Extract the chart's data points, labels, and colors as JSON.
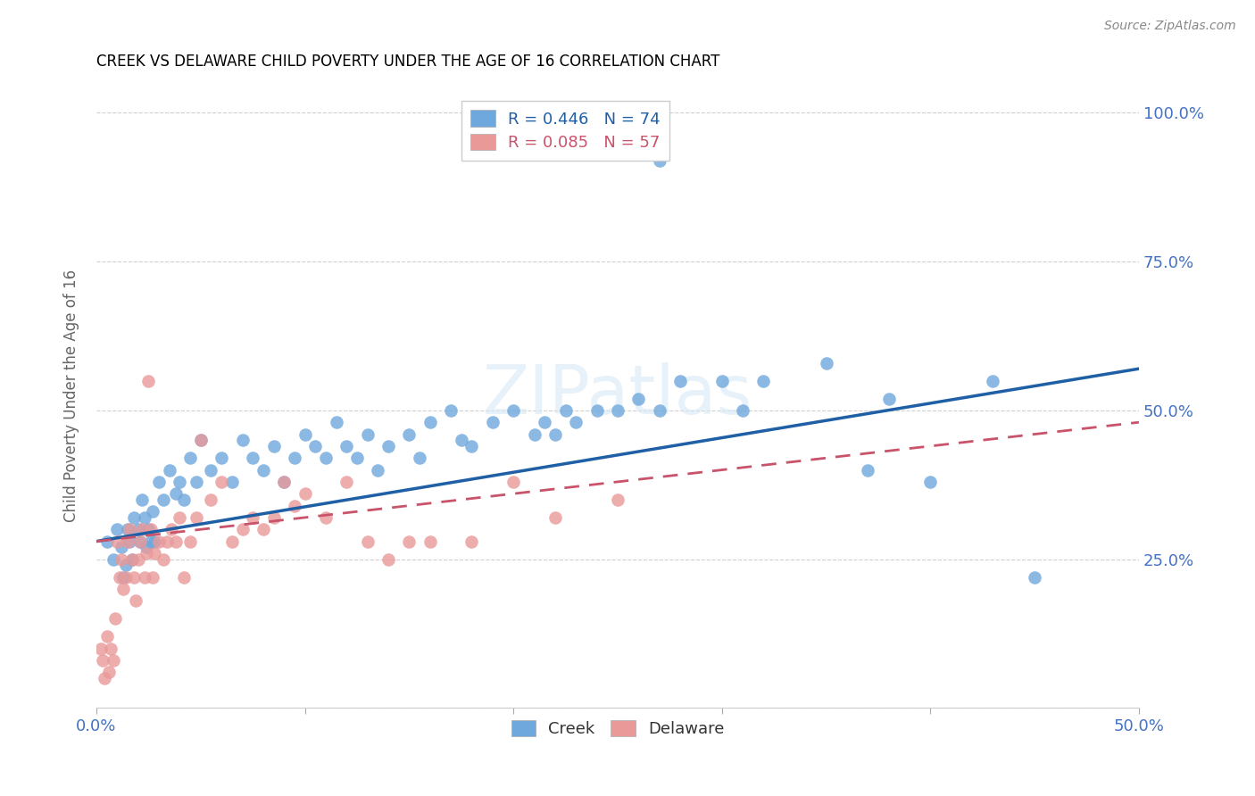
{
  "title": "CREEK VS DELAWARE CHILD POVERTY UNDER THE AGE OF 16 CORRELATION CHART",
  "source": "Source: ZipAtlas.com",
  "ylabel_label": "Child Poverty Under the Age of 16",
  "xlim": [
    0.0,
    0.5
  ],
  "ylim": [
    0.0,
    1.05
  ],
  "xticks": [
    0.0,
    0.1,
    0.2,
    0.3,
    0.4,
    0.5
  ],
  "xticklabels": [
    "0.0%",
    "",
    "",
    "",
    "",
    "50.0%"
  ],
  "ytick_positions": [
    0.0,
    0.25,
    0.5,
    0.75,
    1.0
  ],
  "yticklabels_right": [
    "",
    "25.0%",
    "50.0%",
    "75.0%",
    "100.0%"
  ],
  "creek_color": "#6fa8dc",
  "delaware_color": "#ea9999",
  "creek_line_color": "#1f5fa6",
  "delaware_line_color": "#c9536a",
  "creek_R": 0.446,
  "creek_N": 74,
  "delaware_R": 0.085,
  "delaware_N": 57,
  "creek_scatter_x": [
    0.005,
    0.008,
    0.01,
    0.012,
    0.013,
    0.014,
    0.015,
    0.016,
    0.017,
    0.018,
    0.02,
    0.021,
    0.022,
    0.023,
    0.024,
    0.025,
    0.026,
    0.027,
    0.028,
    0.03,
    0.032,
    0.035,
    0.038,
    0.04,
    0.042,
    0.045,
    0.048,
    0.05,
    0.055,
    0.06,
    0.065,
    0.07,
    0.075,
    0.08,
    0.085,
    0.09,
    0.095,
    0.1,
    0.105,
    0.11,
    0.115,
    0.12,
    0.125,
    0.13,
    0.135,
    0.14,
    0.15,
    0.155,
    0.16,
    0.17,
    0.175,
    0.18,
    0.19,
    0.2,
    0.21,
    0.215,
    0.22,
    0.225,
    0.23,
    0.24,
    0.25,
    0.26,
    0.27,
    0.28,
    0.3,
    0.31,
    0.32,
    0.35,
    0.37,
    0.38,
    0.4,
    0.43,
    0.45,
    0.27
  ],
  "creek_scatter_y": [
    0.28,
    0.25,
    0.3,
    0.27,
    0.22,
    0.24,
    0.3,
    0.28,
    0.25,
    0.32,
    0.3,
    0.28,
    0.35,
    0.32,
    0.27,
    0.3,
    0.28,
    0.33,
    0.28,
    0.38,
    0.35,
    0.4,
    0.36,
    0.38,
    0.35,
    0.42,
    0.38,
    0.45,
    0.4,
    0.42,
    0.38,
    0.45,
    0.42,
    0.4,
    0.44,
    0.38,
    0.42,
    0.46,
    0.44,
    0.42,
    0.48,
    0.44,
    0.42,
    0.46,
    0.4,
    0.44,
    0.46,
    0.42,
    0.48,
    0.5,
    0.45,
    0.44,
    0.48,
    0.5,
    0.46,
    0.48,
    0.46,
    0.5,
    0.48,
    0.5,
    0.5,
    0.52,
    0.5,
    0.55,
    0.55,
    0.5,
    0.55,
    0.58,
    0.4,
    0.52,
    0.38,
    0.55,
    0.22,
    0.92
  ],
  "delaware_scatter_x": [
    0.002,
    0.003,
    0.004,
    0.005,
    0.006,
    0.007,
    0.008,
    0.009,
    0.01,
    0.011,
    0.012,
    0.013,
    0.014,
    0.015,
    0.016,
    0.017,
    0.018,
    0.019,
    0.02,
    0.021,
    0.022,
    0.023,
    0.024,
    0.025,
    0.026,
    0.027,
    0.028,
    0.03,
    0.032,
    0.034,
    0.036,
    0.038,
    0.04,
    0.042,
    0.045,
    0.048,
    0.05,
    0.055,
    0.06,
    0.065,
    0.07,
    0.075,
    0.08,
    0.085,
    0.09,
    0.095,
    0.1,
    0.11,
    0.12,
    0.13,
    0.14,
    0.15,
    0.16,
    0.18,
    0.2,
    0.22,
    0.25
  ],
  "delaware_scatter_y": [
    0.1,
    0.08,
    0.05,
    0.12,
    0.06,
    0.1,
    0.08,
    0.15,
    0.28,
    0.22,
    0.25,
    0.2,
    0.22,
    0.28,
    0.3,
    0.25,
    0.22,
    0.18,
    0.25,
    0.28,
    0.3,
    0.22,
    0.26,
    0.55,
    0.3,
    0.22,
    0.26,
    0.28,
    0.25,
    0.28,
    0.3,
    0.28,
    0.32,
    0.22,
    0.28,
    0.32,
    0.45,
    0.35,
    0.38,
    0.28,
    0.3,
    0.32,
    0.3,
    0.32,
    0.38,
    0.34,
    0.36,
    0.32,
    0.38,
    0.28,
    0.25,
    0.28,
    0.28,
    0.28,
    0.38,
    0.32,
    0.35
  ],
  "creek_line_x": [
    0.0,
    0.5
  ],
  "creek_line_y": [
    0.28,
    0.57
  ],
  "delaware_line_x": [
    0.0,
    0.5
  ],
  "delaware_line_y": [
    0.28,
    0.48
  ],
  "watermark_text": "ZIPatlas",
  "background_color": "#ffffff",
  "grid_color": "#d0d0d0",
  "title_color": "#000000",
  "tick_label_color": "#4472c4"
}
